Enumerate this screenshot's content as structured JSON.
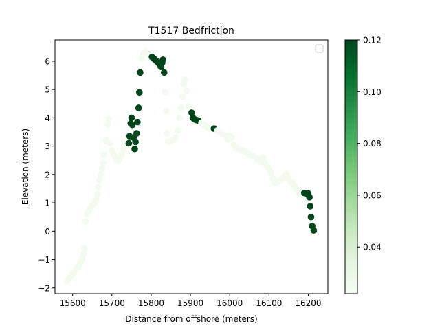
{
  "chart_data": {
    "type": "scatter",
    "title": "T1517 Bedfriction",
    "xlabel": "Distance from offshore (meters)",
    "ylabel": "Elevation (meters)",
    "xlim": [
      15555,
      16250
    ],
    "ylim": [
      -2.2,
      6.75
    ],
    "xticks": [
      15600,
      15700,
      15800,
      15900,
      16000,
      16100,
      16200
    ],
    "xtick_labels": [
      "15600",
      "15700",
      "15800",
      "15900",
      "16000",
      "16100",
      "16200"
    ],
    "yticks": [
      -2,
      -1,
      0,
      1,
      2,
      3,
      4,
      5,
      6
    ],
    "ytick_labels": [
      "−2",
      "−1",
      "0",
      "1",
      "2",
      "3",
      "4",
      "5",
      "6"
    ],
    "grid": false,
    "legend": {
      "placement": "top-right",
      "entries": []
    },
    "colorbar": {
      "min": 0.022,
      "max": 0.12,
      "ticks": [
        0.04,
        0.06,
        0.08,
        0.1,
        0.12
      ],
      "tick_labels": [
        "0.04",
        "0.06",
        "0.08",
        "0.10",
        "0.12"
      ],
      "colormap": "Greens",
      "low_color": "#f7fcf5",
      "high_color": "#00441b"
    },
    "points": [
      [
        15585,
        -1.75,
        0.025
      ],
      [
        15590,
        -1.68,
        0.025
      ],
      [
        15595,
        -1.6,
        0.025
      ],
      [
        15600,
        -1.5,
        0.025
      ],
      [
        15605,
        -1.42,
        0.025
      ],
      [
        15610,
        -1.32,
        0.025
      ],
      [
        15615,
        -1.25,
        0.025
      ],
      [
        15620,
        -1.12,
        0.025
      ],
      [
        15625,
        -0.95,
        0.025
      ],
      [
        15628,
        -0.8,
        0.025
      ],
      [
        15630,
        -0.6,
        0.025
      ],
      [
        15633,
        0.35,
        0.025
      ],
      [
        15637,
        0.6,
        0.025
      ],
      [
        15640,
        0.7,
        0.025
      ],
      [
        15645,
        0.8,
        0.025
      ],
      [
        15650,
        0.9,
        0.025
      ],
      [
        15655,
        1.0,
        0.025
      ],
      [
        15660,
        1.1,
        0.025
      ],
      [
        15663,
        1.3,
        0.025
      ],
      [
        15665,
        1.55,
        0.025
      ],
      [
        15668,
        1.8,
        0.025
      ],
      [
        15672,
        2.0,
        0.025
      ],
      [
        15675,
        2.2,
        0.025
      ],
      [
        15678,
        2.4,
        0.025
      ],
      [
        15680,
        2.7,
        0.025
      ],
      [
        15685,
        3.2,
        0.025
      ],
      [
        15690,
        3.75,
        0.025
      ],
      [
        15692,
        3.95,
        0.025
      ],
      [
        15696,
        3.1,
        0.025
      ],
      [
        15700,
        2.85,
        0.025
      ],
      [
        15705,
        2.7,
        0.025
      ],
      [
        15710,
        2.55,
        0.025
      ],
      [
        15715,
        2.5,
        0.025
      ],
      [
        15720,
        2.55,
        0.025
      ],
      [
        15725,
        2.7,
        0.025
      ],
      [
        15730,
        2.9,
        0.025
      ],
      [
        15735,
        3.1,
        0.025
      ],
      [
        15740,
        3.3,
        0.025
      ],
      [
        15743,
        3.1,
        0.12
      ],
      [
        15745,
        3.35,
        0.12
      ],
      [
        15748,
        3.8,
        0.12
      ],
      [
        15750,
        4.0,
        0.12
      ],
      [
        15752,
        3.75,
        0.12
      ],
      [
        15755,
        3.3,
        0.12
      ],
      [
        15758,
        2.9,
        0.12
      ],
      [
        15760,
        3.15,
        0.12
      ],
      [
        15763,
        3.45,
        0.12
      ],
      [
        15765,
        3.85,
        0.12
      ],
      [
        15768,
        4.35,
        0.12
      ],
      [
        15770,
        4.9,
        0.12
      ],
      [
        15772,
        5.6,
        0.12
      ],
      [
        15776,
        6.1,
        0.025
      ],
      [
        15780,
        6.28,
        0.025
      ],
      [
        15785,
        6.35,
        0.025
      ],
      [
        15790,
        6.3,
        0.025
      ],
      [
        15797,
        6.2,
        0.025
      ],
      [
        15802,
        6.15,
        0.12
      ],
      [
        15806,
        6.1,
        0.12
      ],
      [
        15810,
        6.05,
        0.12
      ],
      [
        15814,
        6.0,
        0.12
      ],
      [
        15818,
        5.95,
        0.12
      ],
      [
        15822,
        5.85,
        0.12
      ],
      [
        15825,
        5.8,
        0.12
      ],
      [
        15828,
        5.95,
        0.12
      ],
      [
        15830,
        6.05,
        0.12
      ],
      [
        15833,
        5.6,
        0.12
      ],
      [
        15836,
        4.9,
        0.025
      ],
      [
        15838,
        4.25,
        0.025
      ],
      [
        15840,
        3.45,
        0.025
      ],
      [
        15843,
        3.15,
        0.025
      ],
      [
        15848,
        3.15,
        0.025
      ],
      [
        15855,
        3.2,
        0.025
      ],
      [
        15862,
        3.3,
        0.025
      ],
      [
        15868,
        3.55,
        0.025
      ],
      [
        15872,
        4.0,
        0.025
      ],
      [
        15876,
        4.35,
        0.025
      ],
      [
        15880,
        4.75,
        0.025
      ],
      [
        15883,
        5.2,
        0.025
      ],
      [
        15886,
        5.35,
        0.025
      ],
      [
        15890,
        4.95,
        0.025
      ],
      [
        15895,
        4.4,
        0.025
      ],
      [
        15903,
        4.18,
        0.12
      ],
      [
        15906,
        4.0,
        0.12
      ],
      [
        15910,
        3.95,
        0.12
      ],
      [
        15915,
        3.92,
        0.12
      ],
      [
        15920,
        3.9,
        0.12
      ],
      [
        15928,
        3.82,
        0.025
      ],
      [
        15935,
        3.75,
        0.025
      ],
      [
        15942,
        3.68,
        0.025
      ],
      [
        15950,
        3.62,
        0.025
      ],
      [
        15960,
        3.62,
        0.12
      ],
      [
        15968,
        3.55,
        0.025
      ],
      [
        15975,
        3.5,
        0.025
      ],
      [
        15982,
        3.42,
        0.025
      ],
      [
        15990,
        3.35,
        0.025
      ],
      [
        15995,
        3.25,
        0.025
      ],
      [
        16000,
        3.35,
        0.025
      ],
      [
        16005,
        3.3,
        0.025
      ],
      [
        16010,
        3.05,
        0.025
      ],
      [
        16015,
        2.95,
        0.025
      ],
      [
        16020,
        2.9,
        0.025
      ],
      [
        16030,
        2.85,
        0.025
      ],
      [
        16040,
        2.8,
        0.025
      ],
      [
        16050,
        2.7,
        0.025
      ],
      [
        16060,
        2.65,
        0.025
      ],
      [
        16070,
        2.55,
        0.025
      ],
      [
        16080,
        2.45,
        0.025
      ],
      [
        16085,
        2.6,
        0.025
      ],
      [
        16090,
        2.4,
        0.025
      ],
      [
        16095,
        2.3,
        0.025
      ],
      [
        16100,
        2.2,
        0.025
      ],
      [
        16105,
        2.05,
        0.025
      ],
      [
        16110,
        1.85,
        0.025
      ],
      [
        16115,
        1.72,
        0.025
      ],
      [
        16120,
        1.72,
        0.025
      ],
      [
        16125,
        1.75,
        0.025
      ],
      [
        16130,
        1.8,
        0.025
      ],
      [
        16135,
        1.85,
        0.025
      ],
      [
        16140,
        1.95,
        0.025
      ],
      [
        16145,
        2.0,
        0.025
      ],
      [
        16150,
        1.85,
        0.025
      ],
      [
        16155,
        1.75,
        0.025
      ],
      [
        16160,
        1.7,
        0.025
      ],
      [
        16165,
        1.6,
        0.025
      ],
      [
        16170,
        1.45,
        0.025
      ],
      [
        16175,
        1.35,
        0.025
      ],
      [
        16180,
        1.3,
        0.025
      ],
      [
        16185,
        1.3,
        0.025
      ],
      [
        16190,
        1.35,
        0.12
      ],
      [
        16195,
        1.33,
        0.12
      ],
      [
        16200,
        1.33,
        0.12
      ],
      [
        16203,
        1.2,
        0.12
      ],
      [
        16205,
        0.88,
        0.12
      ],
      [
        16207,
        0.5,
        0.12
      ],
      [
        16210,
        0.18,
        0.12
      ],
      [
        16214,
        0.03,
        0.12
      ]
    ]
  }
}
